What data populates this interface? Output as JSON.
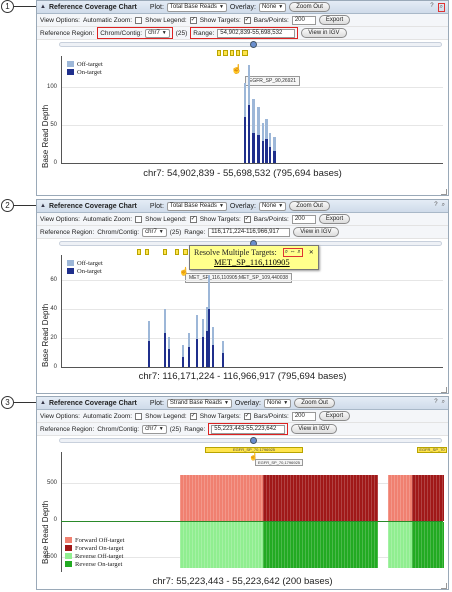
{
  "callouts": [
    "1",
    "2",
    "3"
  ],
  "common": {
    "panel_title": "Reference Coverage Chart",
    "plot_label": "Plot:",
    "overlay_label": "Overlay:",
    "overlay_value": "None",
    "zoom_out": "Zoom Out",
    "view_options": "View Options:",
    "auto_zoom": "Automatic Zoom:",
    "show_legend": "Show Legend:",
    "show_targets": "Show Targets:",
    "bars_points": "Bars/Points:",
    "bars_value": "200",
    "export": "Export",
    "reference_region": "Reference Region:",
    "chrom_contig": "Chrom/Contig:",
    "chrom_value": "chr7",
    "count": "(25)",
    "range_label": "Range:",
    "view_igv": "View in IGV",
    "ylabel": "Base Read Depth",
    "help_icon_text": "?"
  },
  "panel1": {
    "plot_value": "Total Base Reads",
    "range_value": "54,902,839-55,698,532",
    "legend": [
      "Off-target",
      "On-target"
    ],
    "yticks": [
      "100",
      "50",
      "0"
    ],
    "tooltip": "EGFR_SP_90,26921",
    "caption": "chr7: 54,902,839 - 55,698,532   (795,694 bases)"
  },
  "panel2": {
    "plot_value": "Total Base Reads",
    "range_value": "116,171,224-116,966,917",
    "legend": [
      "Off-target",
      "On-target"
    ],
    "yticks": [
      "60",
      "40",
      "20",
      "0"
    ],
    "tooltip": "MET_SP_116,110905;MET_SP_109,440038",
    "popup_title": "Resolve Multiple Targets:",
    "popup_link": "MET_SP_116,110905",
    "caption": "chr7: 116,171,224 - 116,966,917   (795,694 bases)"
  },
  "panel3": {
    "plot_value": "Strand Base Reads",
    "range_value": "55,223,443-55,223,642",
    "legend": [
      "Forward Off-target",
      "Forward On-target",
      "Reverse Off-target",
      "Reverse On-target"
    ],
    "yticks": [
      "500",
      "0",
      "-500"
    ],
    "target_a": "EGFR_SP_70,1796925",
    "target_b": "EGFR_SP_70",
    "tooltip": "EGFR_SP_70,1796925",
    "caption": "chr7: 55,223,443 - 55,223,642   (200 bases)"
  },
  "colors": {
    "off_target": "#9db7d8",
    "on_target": "#1f2f8c",
    "fwd_off": "#f08070",
    "fwd_on": "#a01818",
    "rev_off": "#90ee90",
    "rev_on": "#22aa22"
  }
}
